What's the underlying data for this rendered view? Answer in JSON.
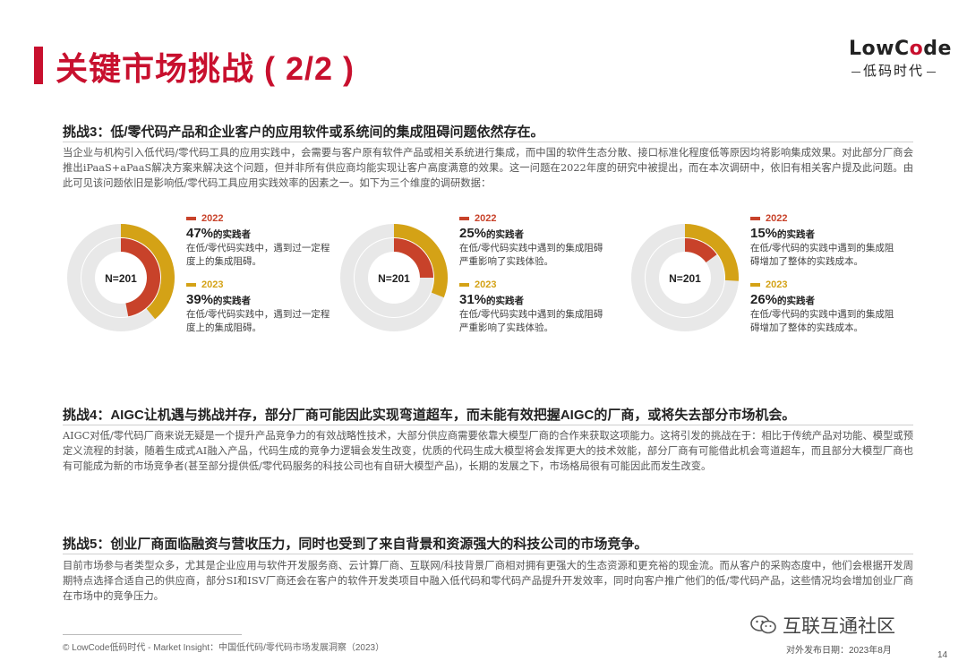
{
  "header": {
    "title": "关键市场挑战 ( 2/2 )",
    "logo_low": "LowC",
    "logo_o": "o",
    "logo_de": "de",
    "logo_cn": "低码时代"
  },
  "sections": [
    {
      "heading": "挑战3：低/零代码产品和企业客户的应用软件或系统间的集成阻碍问题依然存在。",
      "body": "当企业与机构引入低代码/零代码工具的应用实践中，会需要与客户原有软件产品或相关系统进行集成，而中国的软件生态分散、接口标准化程度低等原因均将影响集成效果。对此部分厂商会推出iPaaS+aPaaS解决方案来解决这个问题，但并非所有供应商均能实现让客户高度满意的效果。这一问题在2022年度的研究中被提出，而在本次调研中，依旧有相关客户提及此问题。由此可见该问题依旧是影响低/零代码工具应用实践效率的因素之一。如下为三个维度的调研数据："
    },
    {
      "heading": "挑战4：AIGC让机遇与挑战并存，部分厂商可能因此实现弯道超车，而未能有效把握AIGC的厂商，或将失去部分市场机会。",
      "body": "AIGC对低/零代码厂商来说无疑是一个提升产品竞争力的有效战略性技术，大部分供应商需要依靠大模型厂商的合作来获取这项能力。这将引发的挑战在于：相比于传统产品对功能、模型或预定义流程的封装，随着生成式AI融入产品，代码生成的竞争力逻辑会发生改变，优质的代码生成大模型将会发挥更大的技术效能，部分厂商有可能借此机会弯道超车，而且部分大模型厂商也有可能成为新的市场竞争者(甚至部分提供低/零代码服务的科技公司也有自研大模型产品)，长期的发展之下，市场格局很有可能因此而发生改变。"
    },
    {
      "heading": "挑战5：创业厂商面临融资与营收压力，同时也受到了来自背景和资源强大的科技公司的市场竞争。",
      "body": "目前市场参与者类型众多，尤其是企业应用与软件开发服务商、云计算厂商、互联网/科技背景厂商相对拥有更强大的生态资源和更充裕的现金流。而从客户的采购态度中，他们会根据开发周期特点选择合适自己的供应商，部分SI和ISV厂商还会在客户的软件开发类项目中融入低代码和零代码产品提升开发效率，同时向客户推广他们的低/零代码产品，这些情况均会增加创业厂商在市场中的竞争压力。"
    }
  ],
  "chart_data": [
    {
      "type": "pie",
      "center_label": "N=201",
      "series": [
        {
          "name": "2022",
          "value": 47,
          "pct_text": "47%",
          "unit_text": "的实践者",
          "desc": "在低/零代码实践中，遇到过一定程度上的集成阻碍。"
        },
        {
          "name": "2023",
          "value": 39,
          "pct_text": "39%",
          "unit_text": "的实践者",
          "desc": "在低/零代码实践中，遇到过一定程度上的集成阻碍。"
        }
      ]
    },
    {
      "type": "pie",
      "center_label": "N=201",
      "series": [
        {
          "name": "2022",
          "value": 25,
          "pct_text": "25%",
          "unit_text": "的实践者",
          "desc": "在低/零代码实践中遇到的集成阻碍严重影响了实践体验。"
        },
        {
          "name": "2023",
          "value": 31,
          "pct_text": "31%",
          "unit_text": "的实践者",
          "desc": "在低/零代码实践中遇到的集成阻碍严重影响了实践体验。"
        }
      ]
    },
    {
      "type": "pie",
      "center_label": "N=201",
      "series": [
        {
          "name": "2022",
          "value": 15,
          "pct_text": "15%",
          "unit_text": "的实践者",
          "desc": "在低/零代码的实践中遇到的集成阻碍增加了整体的实践成本。"
        },
        {
          "name": "2023",
          "value": 26,
          "pct_text": "26%",
          "unit_text": "的实践者",
          "desc": "在低/零代码的实践中遇到的集成阻碍增加了整体的实践成本。"
        }
      ]
    }
  ],
  "colors": {
    "y2022": "#c8422a",
    "y2023": "#d4a216",
    "track": "#e8e8e8"
  },
  "footer": {
    "source": "© LowCode低码时代 - Market Insight：中国低代码/零代码市场发展洞察（2023）",
    "release": "对外发布日期：2023年8月",
    "page": "14",
    "watermark": "互联互通社区"
  }
}
